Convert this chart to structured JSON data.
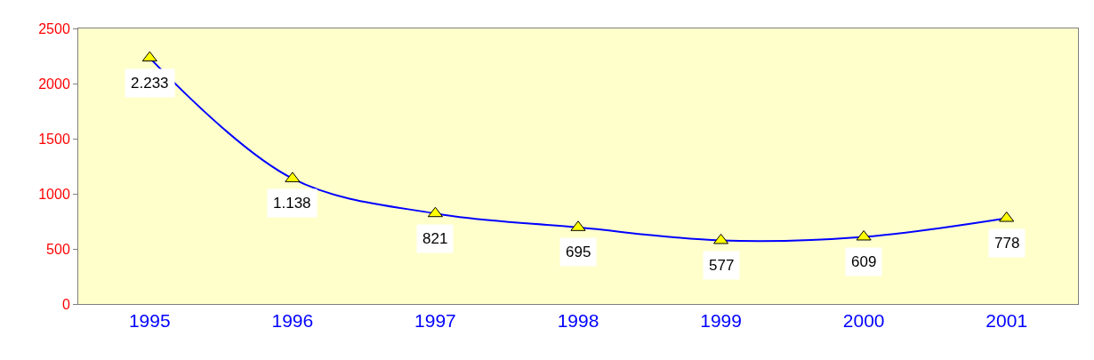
{
  "chart_data": {
    "type": "line",
    "categories": [
      "1995",
      "1996",
      "1997",
      "1998",
      "1999",
      "2000",
      "2001"
    ],
    "values": [
      2233,
      1138,
      821,
      695,
      577,
      609,
      778
    ],
    "value_labels": [
      "2.233",
      "1.138",
      "821",
      "695",
      "577",
      "609",
      "778"
    ],
    "color": "#0000ff",
    "marker": "triangle",
    "colors": [
      "#ffff00",
      "#ffff00",
      "#ffff00",
      "#ffff00",
      "#ffff00",
      "#ffff00",
      "#ffff00"
    ],
    "ylim": [
      0,
      2500
    ],
    "yticks": [
      0,
      500,
      1000,
      1500,
      2000,
      2500
    ],
    "grid": false,
    "legend": false
  }
}
